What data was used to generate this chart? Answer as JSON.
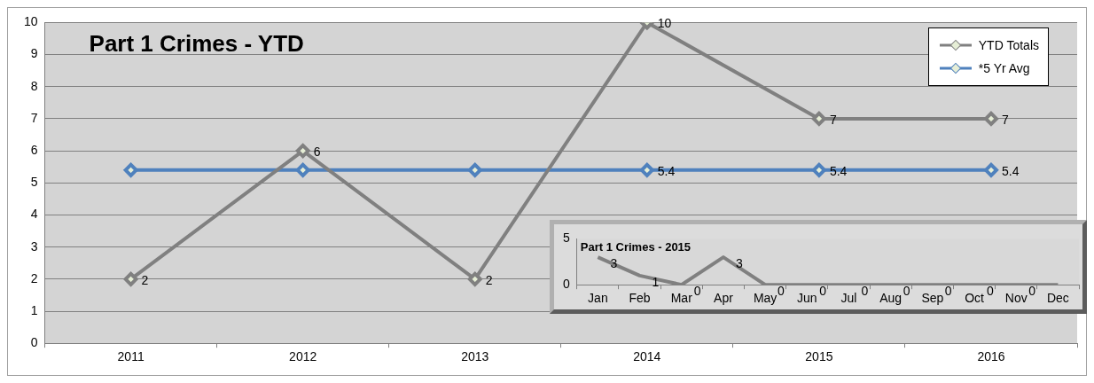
{
  "chart_data": [
    {
      "type": "line",
      "title": "Part 1 Crimes - YTD",
      "categories": [
        "2011",
        "2012",
        "2013",
        "2014",
        "2015",
        "2016"
      ],
      "series": [
        {
          "name": "YTD Totals",
          "color": "#808080",
          "values": [
            2,
            6,
            2,
            10,
            7,
            7
          ],
          "value_labels": [
            "2",
            "6",
            "2",
            "10",
            "7",
            "7"
          ]
        },
        {
          "name": "*5 Yr Avg",
          "color": "#4f81bd",
          "values": [
            5.4,
            5.4,
            5.4,
            5.4,
            5.4,
            5.4
          ],
          "value_labels": [
            null,
            null,
            null,
            "5.4",
            "5.4",
            "5.4"
          ]
        }
      ],
      "ylim": [
        0,
        10
      ],
      "yticks": [
        0,
        1,
        2,
        3,
        4,
        5,
        6,
        7,
        8,
        9,
        10
      ],
      "grid": "y",
      "legend": "top right",
      "marker": "diamond"
    },
    {
      "type": "line",
      "title": "Part 1 Crimes - 2015",
      "categories": [
        "Jan",
        "Feb",
        "Mar",
        "Apr",
        "May",
        "Jun",
        "Jul",
        "Aug",
        "Sep",
        "Oct",
        "Nov",
        "Dec"
      ],
      "series": [
        {
          "color": "#808080",
          "values": [
            3,
            1,
            0,
            3,
            0,
            0,
            0,
            0,
            0,
            0,
            0,
            0
          ],
          "value_labels": [
            "3",
            "1",
            "0",
            "3",
            "0",
            "0",
            "0",
            "0",
            "0",
            "0",
            "0",
            null
          ]
        }
      ],
      "ylim": [
        0,
        5
      ],
      "yticks": [
        0,
        5
      ]
    }
  ]
}
